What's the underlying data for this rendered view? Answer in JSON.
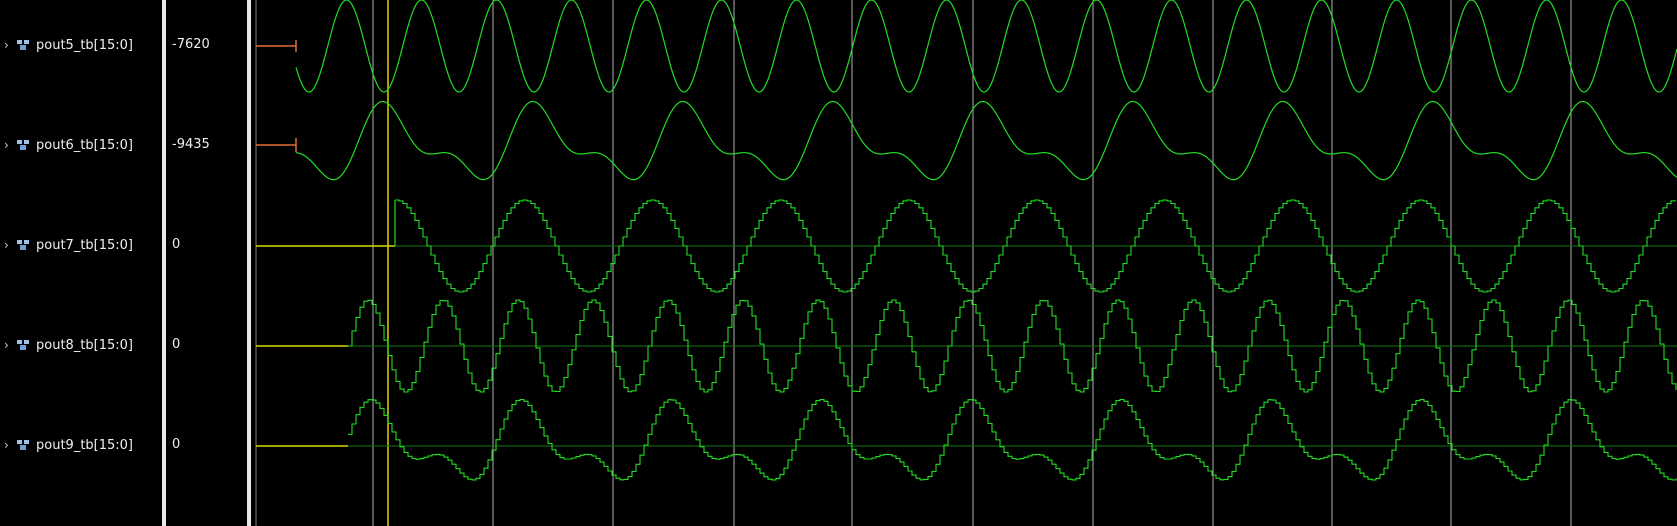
{
  "signals": [
    {
      "name": "pout5_tb[15:0]",
      "value": "-7620"
    },
    {
      "name": "pout6_tb[15:0]",
      "value": "-9435"
    },
    {
      "name": "pout7_tb[15:0]",
      "value": "0"
    },
    {
      "name": "pout8_tb[15:0]",
      "value": "0"
    },
    {
      "name": "pout9_tb[15:0]",
      "value": "0"
    }
  ],
  "icons": {
    "expander": "chevron-right-icon",
    "bus": "bus-icon"
  },
  "colors": {
    "waveform": "#22dd22",
    "baseline": "#117711",
    "undefined": "#e07030",
    "initial": "#d8d800",
    "grid": "#cfcfcf",
    "cursor": "#e0d000",
    "background": "#000000"
  }
}
